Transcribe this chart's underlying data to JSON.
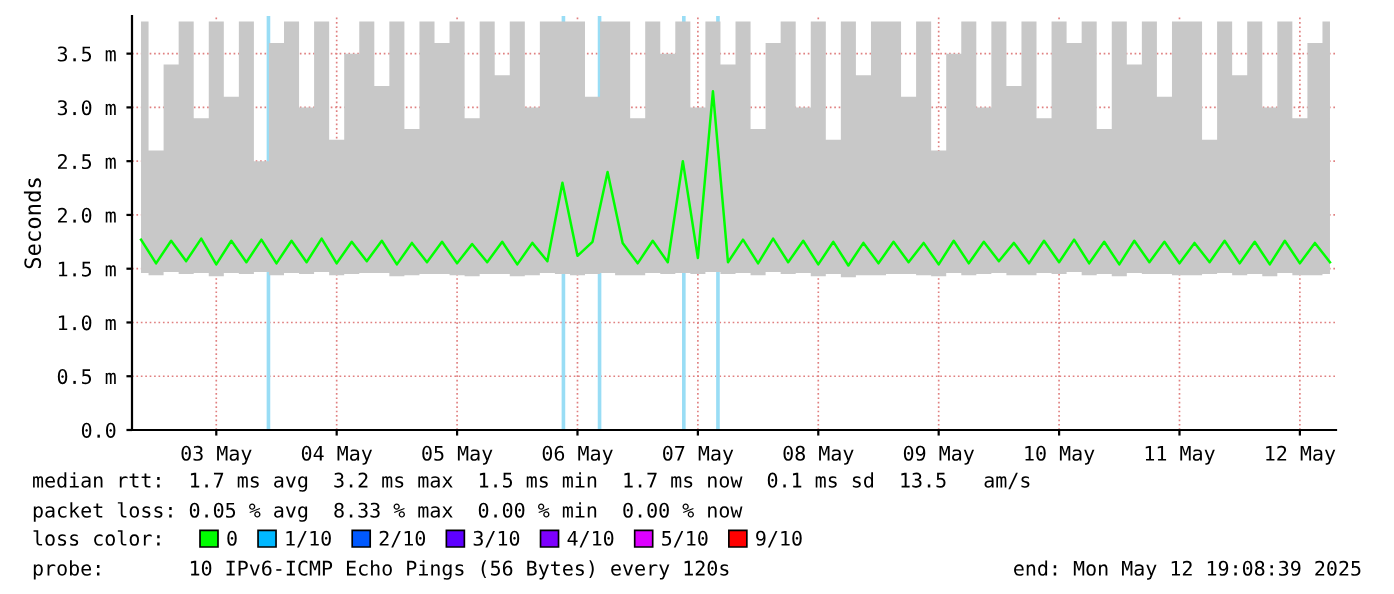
{
  "chart_data": {
    "type": "line",
    "ylabel": "Seconds",
    "x": [
      "2025-05-02T21:00",
      "2025-05-03T00:00",
      "2025-05-03T03:00",
      "2025-05-03T06:00",
      "2025-05-03T09:00",
      "2025-05-03T12:00",
      "2025-05-03T15:00",
      "2025-05-03T18:00",
      "2025-05-03T21:00",
      "2025-05-04T00:00",
      "2025-05-04T03:00",
      "2025-05-04T06:00",
      "2025-05-04T09:00",
      "2025-05-04T12:00",
      "2025-05-04T15:00",
      "2025-05-04T18:00",
      "2025-05-04T21:00",
      "2025-05-05T00:00",
      "2025-05-05T03:00",
      "2025-05-05T06:00",
      "2025-05-05T09:00",
      "2025-05-05T12:00",
      "2025-05-05T15:00",
      "2025-05-05T18:00",
      "2025-05-05T21:00",
      "2025-05-06T00:00",
      "2025-05-06T03:00",
      "2025-05-06T06:00",
      "2025-05-06T09:00",
      "2025-05-06T12:00",
      "2025-05-06T15:00",
      "2025-05-06T18:00",
      "2025-05-06T21:00",
      "2025-05-07T00:00",
      "2025-05-07T03:00",
      "2025-05-07T06:00",
      "2025-05-07T09:00",
      "2025-05-07T12:00",
      "2025-05-07T15:00",
      "2025-05-07T18:00",
      "2025-05-07T21:00",
      "2025-05-08T00:00",
      "2025-05-08T03:00",
      "2025-05-08T06:00",
      "2025-05-08T09:00",
      "2025-05-08T12:00",
      "2025-05-08T15:00",
      "2025-05-08T18:00",
      "2025-05-08T21:00",
      "2025-05-09T00:00",
      "2025-05-09T03:00",
      "2025-05-09T06:00",
      "2025-05-09T09:00",
      "2025-05-09T12:00",
      "2025-05-09T15:00",
      "2025-05-09T18:00",
      "2025-05-09T21:00",
      "2025-05-10T00:00",
      "2025-05-10T03:00",
      "2025-05-10T06:00",
      "2025-05-10T09:00",
      "2025-05-10T12:00",
      "2025-05-10T15:00",
      "2025-05-10T18:00",
      "2025-05-10T21:00",
      "2025-05-11T00:00",
      "2025-05-11T03:00",
      "2025-05-11T06:00",
      "2025-05-11T09:00",
      "2025-05-11T12:00",
      "2025-05-11T15:00",
      "2025-05-11T18:00",
      "2025-05-11T21:00",
      "2025-05-12T00:00",
      "2025-05-12T03:00",
      "2025-05-12T06:00",
      "2025-05-12T09:00",
      "2025-05-12T12:00",
      "2025-05-12T15:00",
      "2025-05-12T18:00"
    ],
    "series": [
      {
        "name": "0",
        "color": "#00ff00",
        "values": [
          1.77,
          1.55,
          1.76,
          1.57,
          1.78,
          1.54,
          1.76,
          1.56,
          1.77,
          1.55,
          1.76,
          1.56,
          1.78,
          1.55,
          1.75,
          1.57,
          1.76,
          1.54,
          1.74,
          1.56,
          1.75,
          1.55,
          1.73,
          1.56,
          1.75,
          1.54,
          1.74,
          1.57,
          2.3,
          1.62,
          1.75,
          2.4,
          1.74,
          1.55,
          1.76,
          1.56,
          2.5,
          1.6,
          3.15,
          1.56,
          1.77,
          1.55,
          1.78,
          1.56,
          1.76,
          1.54,
          1.75,
          1.53,
          1.74,
          1.55,
          1.75,
          1.56,
          1.74,
          1.54,
          1.76,
          1.55,
          1.75,
          1.57,
          1.74,
          1.55,
          1.76,
          1.56,
          1.77,
          1.55,
          1.75,
          1.54,
          1.76,
          1.56,
          1.75,
          1.55,
          1.74,
          1.56,
          1.76,
          1.55,
          1.75,
          1.54,
          1.76,
          1.55,
          1.74,
          1.56
        ],
        "upper": [
          3.8,
          2.6,
          3.4,
          3.8,
          2.9,
          3.8,
          3.1,
          3.8,
          2.5,
          3.6,
          3.8,
          3.0,
          3.8,
          2.7,
          3.5,
          3.8,
          3.2,
          3.8,
          2.8,
          3.8,
          3.6,
          3.8,
          2.9,
          3.8,
          3.3,
          3.8,
          3.0,
          3.8,
          3.8,
          3.8,
          3.1,
          3.8,
          3.8,
          2.9,
          3.8,
          3.5,
          3.8,
          3.0,
          3.8,
          3.4,
          3.8,
          2.8,
          3.6,
          3.8,
          3.0,
          3.8,
          2.7,
          3.8,
          3.3,
          3.8,
          3.8,
          3.1,
          3.8,
          2.6,
          3.5,
          3.8,
          3.0,
          3.8,
          3.2,
          3.8,
          2.9,
          3.8,
          3.6,
          3.8,
          2.8,
          3.8,
          3.4,
          3.8,
          3.1,
          3.8,
          3.8,
          2.7,
          3.8,
          3.3,
          3.8,
          3.0,
          3.8,
          2.9,
          3.6,
          3.8
        ],
        "lower": [
          1.46,
          1.44,
          1.47,
          1.45,
          1.46,
          1.43,
          1.46,
          1.45,
          1.47,
          1.44,
          1.46,
          1.45,
          1.47,
          1.44,
          1.45,
          1.46,
          1.46,
          1.43,
          1.44,
          1.45,
          1.45,
          1.44,
          1.43,
          1.45,
          1.45,
          1.43,
          1.44,
          1.46,
          1.45,
          1.44,
          1.45,
          1.46,
          1.44,
          1.44,
          1.46,
          1.45,
          1.46,
          1.45,
          1.47,
          1.45,
          1.46,
          1.44,
          1.47,
          1.45,
          1.46,
          1.43,
          1.45,
          1.42,
          1.44,
          1.44,
          1.45,
          1.45,
          1.44,
          1.43,
          1.46,
          1.44,
          1.45,
          1.46,
          1.44,
          1.44,
          1.46,
          1.45,
          1.47,
          1.44,
          1.45,
          1.43,
          1.46,
          1.45,
          1.45,
          1.44,
          1.44,
          1.45,
          1.46,
          1.44,
          1.45,
          1.43,
          1.46,
          1.44,
          1.44,
          1.45
        ]
      },
      {
        "name": "1/10",
        "color": "#00b8ff",
        "values": [
          null,
          null,
          null,
          null,
          null,
          null,
          null,
          null,
          null,
          null,
          null,
          null,
          null,
          null,
          null,
          null,
          null,
          null,
          null,
          null,
          null,
          null,
          null,
          null,
          null,
          null,
          null,
          null,
          null,
          null,
          null,
          null,
          null,
          null,
          null,
          null,
          null,
          null,
          null,
          null,
          null,
          null,
          null,
          null,
          null,
          null,
          null,
          null,
          null,
          null,
          null,
          null,
          null,
          null,
          null,
          null,
          null,
          null,
          null,
          null,
          null,
          null,
          null,
          null,
          null,
          null,
          null,
          null,
          null,
          null,
          null,
          null,
          null,
          null,
          null,
          null,
          null,
          null,
          null,
          null
        ]
      },
      {
        "name": "2/10",
        "color": "#0059ff",
        "values": [
          null,
          null,
          null,
          null,
          null,
          null,
          null,
          null,
          null,
          null,
          null,
          null,
          null,
          null,
          null,
          null,
          null,
          null,
          null,
          null,
          null,
          null,
          null,
          null,
          null,
          null,
          null,
          null,
          null,
          null,
          null,
          null,
          null,
          null,
          null,
          null,
          null,
          null,
          null,
          null,
          null,
          null,
          null,
          null,
          null,
          null,
          null,
          null,
          null,
          null,
          null,
          null,
          null,
          null,
          null,
          null,
          null,
          null,
          null,
          null,
          null,
          null,
          null,
          null,
          null,
          null,
          null,
          null,
          null,
          null,
          null,
          null,
          null,
          null,
          null,
          null,
          null,
          null,
          null,
          null
        ]
      },
      {
        "name": "3/10",
        "color": "#5e00ff",
        "values": [
          null,
          null,
          null,
          null,
          null,
          null,
          null,
          null,
          null,
          null,
          null,
          null,
          null,
          null,
          null,
          null,
          null,
          null,
          null,
          null,
          null,
          null,
          null,
          null,
          null,
          null,
          null,
          null,
          null,
          null,
          null,
          null,
          null,
          null,
          null,
          null,
          null,
          null,
          null,
          null,
          null,
          null,
          null,
          null,
          null,
          null,
          null,
          null,
          null,
          null,
          null,
          null,
          null,
          null,
          null,
          null,
          null,
          null,
          null,
          null,
          null,
          null,
          null,
          null,
          null,
          null,
          null,
          null,
          null,
          null,
          null,
          null,
          null,
          null,
          null,
          null,
          null,
          null,
          null,
          null
        ]
      },
      {
        "name": "4/10",
        "color": "#7e00ff",
        "values": [
          null,
          null,
          null,
          null,
          null,
          null,
          null,
          null,
          null,
          null,
          null,
          null,
          null,
          null,
          null,
          null,
          null,
          null,
          null,
          null,
          null,
          null,
          null,
          null,
          null,
          null,
          null,
          null,
          null,
          null,
          null,
          null,
          null,
          null,
          null,
          null,
          null,
          null,
          null,
          null,
          null,
          null,
          null,
          null,
          null,
          null,
          null,
          null,
          null,
          null,
          null,
          null,
          null,
          null,
          null,
          null,
          null,
          null,
          null,
          null,
          null,
          null,
          null,
          null,
          null,
          null,
          null,
          null,
          null,
          null,
          null,
          null,
          null,
          null,
          null,
          null,
          null,
          null,
          null,
          null
        ]
      },
      {
        "name": "5/10",
        "color": "#dd00ff",
        "values": [
          null,
          null,
          null,
          null,
          null,
          null,
          null,
          null,
          null,
          null,
          null,
          null,
          null,
          null,
          null,
          null,
          null,
          null,
          null,
          null,
          null,
          null,
          null,
          null,
          null,
          null,
          null,
          null,
          null,
          null,
          null,
          null,
          null,
          null,
          null,
          null,
          null,
          null,
          null,
          null,
          null,
          null,
          null,
          null,
          null,
          null,
          null,
          null,
          null,
          null,
          null,
          null,
          null,
          null,
          null,
          null,
          null,
          null,
          null,
          null,
          null,
          null,
          null,
          null,
          null,
          null,
          null,
          null,
          null,
          null,
          null,
          null,
          null,
          null,
          null,
          null,
          null,
          null,
          null,
          null
        ]
      },
      {
        "name": "9/10",
        "color": "#ff0000",
        "values": [
          null,
          null,
          null,
          null,
          null,
          null,
          null,
          null,
          null,
          null,
          null,
          null,
          null,
          null,
          null,
          null,
          null,
          null,
          null,
          null,
          null,
          null,
          null,
          null,
          null,
          null,
          null,
          null,
          null,
          null,
          null,
          null,
          null,
          null,
          null,
          null,
          null,
          null,
          null,
          null,
          null,
          null,
          null,
          null,
          null,
          null,
          null,
          null,
          null,
          null,
          null,
          null,
          null,
          null,
          null,
          null,
          null,
          null,
          null,
          null,
          null,
          null,
          null,
          null,
          null,
          null,
          null,
          null,
          null,
          null,
          null,
          null,
          null,
          null,
          null,
          null,
          null,
          null,
          null,
          null
        ]
      }
    ],
    "xlim": [
      "2025-05-02T19:12",
      "2025-05-12T19:12"
    ],
    "xticks": [
      {
        "value": "2025-05-03T12:00",
        "label": "03 May"
      },
      {
        "value": "2025-05-04T12:00",
        "label": "04 May"
      },
      {
        "value": "2025-05-05T12:00",
        "label": "05 May"
      },
      {
        "value": "2025-05-06T12:00",
        "label": "06 May"
      },
      {
        "value": "2025-05-07T12:00",
        "label": "07 May"
      },
      {
        "value": "2025-05-08T12:00",
        "label": "08 May"
      },
      {
        "value": "2025-05-09T12:00",
        "label": "09 May"
      },
      {
        "value": "2025-05-10T12:00",
        "label": "10 May"
      },
      {
        "value": "2025-05-11T12:00",
        "label": "11 May"
      },
      {
        "value": "2025-05-12T12:00",
        "label": "12 May"
      }
    ],
    "ylim": [
      0,
      3.85
    ],
    "yticks": [
      {
        "value": 0,
        "label": "0.0"
      },
      {
        "value": 0.5,
        "label": "0.5 m"
      },
      {
        "value": 1.0,
        "label": "1.0 m"
      },
      {
        "value": 1.5,
        "label": "1.5 m"
      },
      {
        "value": 2.0,
        "label": "2.0 m"
      },
      {
        "value": 2.5,
        "label": "2.5 m"
      },
      {
        "value": 3.0,
        "label": "3.0 m"
      },
      {
        "value": 3.5,
        "label": "3.5 m"
      }
    ],
    "ref_lines": [
      {
        "axis": "x",
        "value": "2025-05-03T22:24",
        "color": "#99ddf5"
      },
      {
        "axis": "x",
        "value": "2025-05-06T09:12",
        "color": "#99ddf5"
      },
      {
        "axis": "x",
        "value": "2025-05-06T16:24",
        "color": "#99ddf5"
      },
      {
        "axis": "x",
        "value": "2025-05-07T09:12",
        "color": "#99ddf5"
      },
      {
        "axis": "x",
        "value": "2025-05-07T16:00",
        "color": "#99ddf5"
      }
    ],
    "grid": true,
    "legend": "bottom",
    "marker": "none",
    "line_style": "solid",
    "annotations": [
      "median rtt:  1.7 ms avg  3.2 ms max  1.5 ms min  1.7 ms now  0.1 ms sd  13.5   am/s",
      "packet loss: 0.05 % avg  8.33 % max  0.00 % min  0.00 % now",
      "loss color:",
      "probe:       10 IPv6-ICMP Echo Pings (56 Bytes) every 120s",
      "end: Mon May 12 19:08:39 2025"
    ]
  }
}
